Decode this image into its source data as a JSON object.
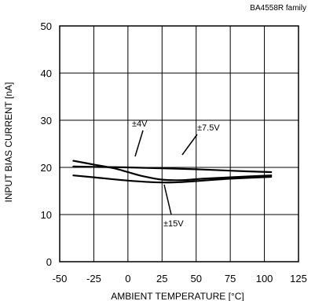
{
  "chart_data": {
    "type": "line",
    "title": "BA4558R  family",
    "xlabel": "AMBIENT TEMPERATURE [°C]",
    "ylabel": "INPUT BIAS CURRENT [nA]",
    "xlim": [
      -50,
      125
    ],
    "ylim": [
      0,
      50
    ],
    "xticks": [
      -50,
      -25,
      0,
      25,
      50,
      75,
      100,
      125
    ],
    "yticks": [
      0,
      10,
      20,
      30,
      40,
      50
    ],
    "grid": true,
    "series": [
      {
        "name": "±4V",
        "x": [
          -40,
          -25,
          0,
          25,
          50,
          75,
          105
        ],
        "y": [
          20.2,
          20.1,
          20.0,
          19.8,
          19.6,
          19.3,
          19.0
        ]
      },
      {
        "name": "±7.5V",
        "x": [
          -40,
          -25,
          -10,
          0,
          10,
          25,
          40,
          55,
          75,
          105
        ],
        "y": [
          21.4,
          20.6,
          19.8,
          19.0,
          18.2,
          17.4,
          17.3,
          17.6,
          17.9,
          18.3
        ]
      },
      {
        "name": "±15V",
        "x": [
          -40,
          -25,
          0,
          25,
          40,
          55,
          75,
          105
        ],
        "y": [
          18.3,
          17.9,
          17.2,
          16.8,
          16.9,
          17.2,
          17.6,
          18.0
        ]
      }
    ],
    "annotations": [
      {
        "text": "±4V",
        "series": 0
      },
      {
        "text": "±7.5V",
        "series": 1
      },
      {
        "text": "±15V",
        "series": 2
      }
    ]
  }
}
